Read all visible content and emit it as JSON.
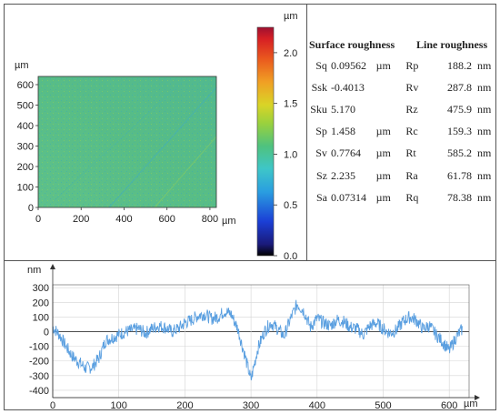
{
  "chart_data": [
    {
      "type": "heatmap",
      "ylabel": "µm",
      "xlabel": "µm",
      "xlim": [
        0,
        830
      ],
      "ylim": [
        0,
        640
      ],
      "x_ticks": [
        "0",
        "200",
        "400",
        "600",
        "800"
      ],
      "y_ticks": [
        "0",
        "100",
        "200",
        "300",
        "400",
        "500",
        "600"
      ],
      "colorbar": {
        "unit": "µm",
        "range": [
          0.0,
          2.25
        ],
        "ticks": [
          "0.0",
          "0.5",
          "1.0",
          "1.5",
          "2.0"
        ]
      }
    },
    {
      "type": "table",
      "headers": [
        "Surface roughness",
        "Line roughness"
      ],
      "rows": [
        {
          "s_sym": "Sq",
          "s_val": "0.09562",
          "s_unit": "µm",
          "l_sym": "Rp",
          "l_val": "188.2",
          "l_unit": "nm"
        },
        {
          "s_sym": "Ssk",
          "s_val": "-0.4013",
          "s_unit": "",
          "l_sym": "Rv",
          "l_val": "287.8",
          "l_unit": "nm"
        },
        {
          "s_sym": "Sku",
          "s_val": "5.170",
          "s_unit": "",
          "l_sym": "Rz",
          "l_val": "475.9",
          "l_unit": "nm"
        },
        {
          "s_sym": "Sp",
          "s_val": "1.458",
          "s_unit": "µm",
          "l_sym": "Rc",
          "l_val": "159.3",
          "l_unit": "nm"
        },
        {
          "s_sym": "Sv",
          "s_val": "0.7764",
          "s_unit": "µm",
          "l_sym": "Rt",
          "l_val": "585.2",
          "l_unit": "nm"
        },
        {
          "s_sym": "Sz",
          "s_val": "2.235",
          "s_unit": "µm",
          "l_sym": "Ra",
          "l_val": "61.78",
          "l_unit": "nm"
        },
        {
          "s_sym": "Sa",
          "s_val": "0.07314",
          "s_unit": "µm",
          "l_sym": "Rq",
          "l_val": "78.38",
          "l_unit": "nm"
        }
      ]
    },
    {
      "type": "line",
      "ylabel": "nm",
      "xlabel": "µm",
      "xlim": [
        0,
        630
      ],
      "ylim": [
        -450,
        320
      ],
      "x_ticks": [
        0,
        100,
        200,
        300,
        400,
        500,
        600
      ],
      "y_ticks": [
        300,
        200,
        100,
        0,
        -100,
        -200,
        -300,
        -400
      ],
      "grid": true,
      "series": [
        {
          "x": [
            0,
            10,
            20,
            30,
            40,
            50,
            60,
            70,
            80,
            90,
            100,
            110,
            120,
            130,
            140,
            150,
            160,
            170,
            180,
            190,
            200,
            210,
            220,
            230,
            240,
            250,
            260,
            270,
            280,
            290,
            300,
            310,
            320,
            330,
            340,
            350,
            360,
            370,
            380,
            390,
            400,
            410,
            420,
            430,
            440,
            450,
            460,
            470,
            480,
            490,
            500,
            510,
            520,
            530,
            540,
            550,
            560,
            570,
            580,
            590,
            600,
            610,
            620
          ],
          "y": [
            30,
            -20,
            -100,
            -170,
            -210,
            -250,
            -240,
            -180,
            -60,
            -40,
            -20,
            0,
            10,
            20,
            -10,
            20,
            40,
            30,
            0,
            20,
            60,
            80,
            110,
            120,
            90,
            100,
            140,
            120,
            20,
            -150,
            -330,
            -120,
            0,
            60,
            20,
            -30,
            90,
            190,
            140,
            30,
            90,
            60,
            40,
            80,
            70,
            30,
            20,
            -20,
            40,
            60,
            20,
            -10,
            10,
            70,
            100,
            80,
            20,
            40,
            -20,
            -70,
            -130,
            -40,
            20
          ]
        }
      ]
    }
  ]
}
